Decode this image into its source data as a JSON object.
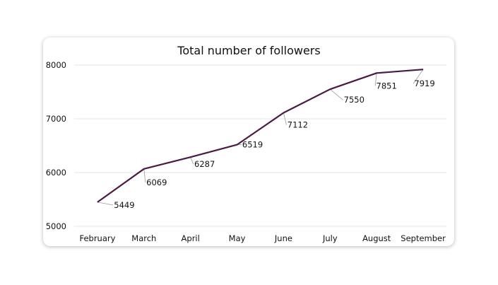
{
  "chart_data": {
    "type": "line",
    "title": "Total number of followers",
    "categories": [
      "February",
      "March",
      "April",
      "May",
      "June",
      "July",
      "August",
      "September"
    ],
    "series": [
      {
        "values": [
          5449,
          6069,
          6287,
          6519,
          7112,
          7550,
          7851,
          7919
        ]
      }
    ],
    "ylim": [
      5000,
      8000
    ],
    "yticks": [
      5000,
      6000,
      7000,
      8000
    ],
    "grid": true,
    "line_color": "#4a1a44",
    "grid_color": "#e6e6e6"
  }
}
